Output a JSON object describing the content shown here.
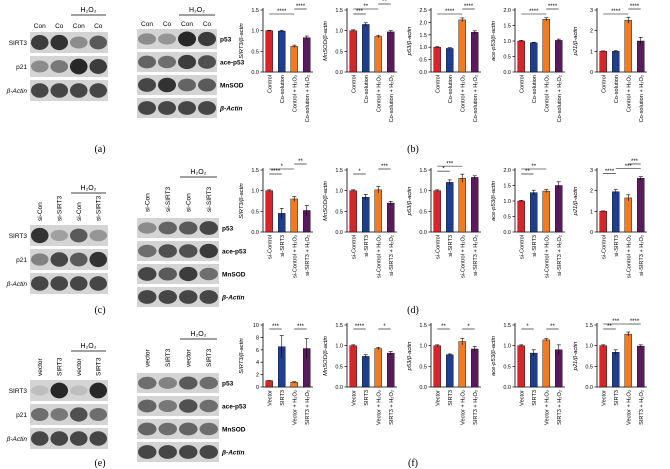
{
  "figure": {
    "panel_labels": [
      "(a)",
      "(b)",
      "(c)",
      "(d)",
      "(e)",
      "(f)"
    ],
    "h2o2_label": "H₂O₂",
    "beta_actin": "β-Actin"
  },
  "blots": [
    {
      "id": "a-left",
      "lanes": [
        "Con",
        "Co",
        "Con",
        "Co"
      ],
      "bands": [
        {
          "label": "SIRT3",
          "pattern": [
            0.75,
            0.8,
            0.35,
            0.6
          ]
        },
        {
          "label": "p21",
          "pattern": [
            0.35,
            0.45,
            0.85,
            0.75
          ]
        },
        {
          "label": "β-Actin",
          "pattern": [
            0.7,
            0.7,
            0.7,
            0.7
          ]
        }
      ]
    },
    {
      "id": "a-right",
      "lanes": [
        "Con",
        "Co",
        "Con",
        "Co"
      ],
      "bands": [
        {
          "label": "p53",
          "pattern": [
            0.35,
            0.3,
            0.85,
            0.75
          ]
        },
        {
          "label": "ace-p53",
          "pattern": [
            0.55,
            0.5,
            0.75,
            0.65
          ]
        },
        {
          "label": "MnSOD",
          "pattern": [
            0.7,
            0.8,
            0.55,
            0.6
          ]
        },
        {
          "label": "β-Actin",
          "pattern": [
            0.7,
            0.7,
            0.7,
            0.7
          ]
        }
      ]
    },
    {
      "id": "c-left",
      "lanes": [
        "si-Con",
        "si-SIRT3",
        "si-Con",
        "si-SIRT3"
      ],
      "bands": [
        {
          "label": "SIRT3",
          "pattern": [
            0.8,
            0.25,
            0.6,
            0.3
          ]
        },
        {
          "label": "p21",
          "pattern": [
            0.4,
            0.7,
            0.6,
            0.8
          ]
        },
        {
          "label": "β-Actin",
          "pattern": [
            0.7,
            0.7,
            0.7,
            0.7
          ]
        }
      ]
    },
    {
      "id": "c-right",
      "lanes": [
        "si-Con",
        "si-SIRT3",
        "si-Con",
        "si-SIRT3"
      ],
      "bands": [
        {
          "label": "p53",
          "pattern": [
            0.35,
            0.55,
            0.6,
            0.7
          ]
        },
        {
          "label": "ace-p53",
          "pattern": [
            0.5,
            0.65,
            0.65,
            0.75
          ]
        },
        {
          "label": "MnSOD",
          "pattern": [
            0.7,
            0.6,
            0.75,
            0.5
          ]
        },
        {
          "label": "β-Actin",
          "pattern": [
            0.7,
            0.7,
            0.7,
            0.7
          ]
        }
      ]
    },
    {
      "id": "e-left",
      "lanes": [
        "vector",
        "SIRT3",
        "vector",
        "SIRT3"
      ],
      "bands": [
        {
          "label": "SIRT3",
          "pattern": [
            0.1,
            0.85,
            0.1,
            0.85
          ]
        },
        {
          "label": "p21",
          "pattern": [
            0.5,
            0.45,
            0.65,
            0.5
          ]
        },
        {
          "label": "β-Actin",
          "pattern": [
            0.7,
            0.7,
            0.7,
            0.7
          ]
        }
      ]
    },
    {
      "id": "e-right",
      "lanes": [
        "vector",
        "SIRT3",
        "vector",
        "SIRT3"
      ],
      "bands": [
        {
          "label": "p53",
          "pattern": [
            0.5,
            0.4,
            0.6,
            0.5
          ]
        },
        {
          "label": "ace-p53",
          "pattern": [
            0.55,
            0.45,
            0.65,
            0.5
          ]
        },
        {
          "label": "MnSOD",
          "pattern": [
            0.55,
            0.5,
            0.55,
            0.5
          ]
        },
        {
          "label": "β-Actin",
          "pattern": [
            0.7,
            0.7,
            0.7,
            0.7
          ]
        }
      ]
    }
  ],
  "colors": {
    "series": [
      "#d62728",
      "#1f3e8a",
      "#f47a20",
      "#5a1a5e"
    ]
  },
  "chart_data": [
    {
      "type": "bar",
      "row": "b",
      "ylabel": "SIRT3/β-actin",
      "ylim": [
        0,
        1.5
      ],
      "yticks": [
        0.0,
        0.5,
        1.0,
        1.5
      ],
      "categories": [
        "Control",
        "Co-solution",
        "Control + H₂O₂",
        "Co-solution + H₂O₂"
      ],
      "values": [
        1.0,
        0.99,
        0.62,
        0.83
      ],
      "errors": [
        0.01,
        0.02,
        0.03,
        0.04
      ],
      "sig": [
        {
          "from": 0,
          "to": 2,
          "level": 0,
          "label": "****"
        },
        {
          "from": 2,
          "to": 3,
          "level": 1,
          "label": "****"
        }
      ]
    },
    {
      "type": "bar",
      "row": "b",
      "ylabel": "MnSOD/β-actin",
      "ylim": [
        0,
        1.5
      ],
      "yticks": [
        0.0,
        0.5,
        1.0,
        1.5
      ],
      "categories": [
        "Control",
        "Co-solution",
        "Control + H₂O₂",
        "Co-solution + H₂O₂"
      ],
      "values": [
        1.0,
        1.15,
        0.86,
        0.97
      ],
      "errors": [
        0.02,
        0.04,
        0.03,
        0.03
      ],
      "sig": [
        {
          "from": 0,
          "to": 1,
          "level": 0,
          "label": "***"
        },
        {
          "from": 0,
          "to": 2,
          "level": 1,
          "label": "**"
        },
        {
          "from": 2,
          "to": 3,
          "level": 2,
          "label": "**"
        }
      ]
    },
    {
      "type": "bar",
      "row": "b",
      "ylabel": "p53/β-actin",
      "ylim": [
        0,
        2.5
      ],
      "yticks": [
        0.0,
        0.5,
        1.0,
        1.5,
        2.0,
        2.5
      ],
      "categories": [
        "Control",
        "Co-solution",
        "Control + H₂O₂",
        "Co-solution + H₂O₂"
      ],
      "values": [
        1.0,
        0.95,
        2.1,
        1.6
      ],
      "errors": [
        0.02,
        0.03,
        0.08,
        0.06
      ],
      "sig": [
        {
          "from": 0,
          "to": 2,
          "level": 0,
          "label": "****"
        },
        {
          "from": 2,
          "to": 3,
          "level": 1,
          "label": "****"
        }
      ]
    },
    {
      "type": "bar",
      "row": "b",
      "ylabel": "ace-p53/β-actin",
      "ylim": [
        0,
        2.0
      ],
      "yticks": [
        0.0,
        0.5,
        1.0,
        1.5,
        2.0
      ],
      "categories": [
        "Control",
        "Co-solution",
        "Control + H₂O₂",
        "Co-solution + H₂O₂"
      ],
      "values": [
        1.0,
        0.94,
        1.7,
        1.02
      ],
      "errors": [
        0.02,
        0.02,
        0.05,
        0.04
      ],
      "sig": [
        {
          "from": 0,
          "to": 2,
          "level": 0,
          "label": "****"
        },
        {
          "from": 2,
          "to": 3,
          "level": 1,
          "label": "****"
        }
      ]
    },
    {
      "type": "bar",
      "row": "b",
      "ylabel": "p21/β-actin",
      "ylim": [
        0,
        3
      ],
      "yticks": [
        0,
        1,
        2,
        3
      ],
      "categories": [
        "Control",
        "Co-solution",
        "Control + H₂O₂",
        "Co-solution + H₂O₂"
      ],
      "values": [
        1.0,
        1.0,
        2.5,
        1.5
      ],
      "errors": [
        0.02,
        0.03,
        0.15,
        0.18
      ],
      "sig": [
        {
          "from": 0,
          "to": 2,
          "level": 0,
          "label": "****"
        },
        {
          "from": 2,
          "to": 3,
          "level": 1,
          "label": "****"
        }
      ]
    },
    {
      "type": "bar",
      "row": "d",
      "ylabel": "SIRT3/β-actin",
      "ylim": [
        0,
        1.5
      ],
      "yticks": [
        0.0,
        0.5,
        1.0,
        1.5
      ],
      "categories": [
        "si-Control",
        "si-SIRT3",
        "si-Control + H₂O₂",
        "si-SIRT3 + H₂O₂"
      ],
      "values": [
        1.0,
        0.45,
        0.8,
        0.52
      ],
      "errors": [
        0.02,
        0.12,
        0.06,
        0.12
      ],
      "sig": [
        {
          "from": 0,
          "to": 1,
          "level": 0,
          "label": "****"
        },
        {
          "from": 0,
          "to": 2,
          "level": 1,
          "label": "*"
        },
        {
          "from": 2,
          "to": 3,
          "level": 2,
          "label": "**"
        }
      ]
    },
    {
      "type": "bar",
      "row": "d",
      "ylabel": "MnSOD/β-actin",
      "ylim": [
        0,
        1.5
      ],
      "yticks": [
        0.0,
        0.5,
        1.0,
        1.5
      ],
      "categories": [
        "si-Control",
        "si-SIRT3",
        "si-Control + H₂O₂",
        "si-SIRT3 + H₂O₂"
      ],
      "values": [
        1.0,
        0.84,
        1.02,
        0.7
      ],
      "errors": [
        0.02,
        0.07,
        0.08,
        0.04
      ],
      "sig": [
        {
          "from": 0,
          "to": 1,
          "level": 0,
          "label": "*"
        },
        {
          "from": 2,
          "to": 3,
          "level": 1,
          "label": "***"
        }
      ]
    },
    {
      "type": "bar",
      "row": "d",
      "ylabel": "p53/β-actin",
      "ylim": [
        0,
        1.5
      ],
      "yticks": [
        0.0,
        0.5,
        1.0,
        1.5
      ],
      "categories": [
        "si-Control",
        "si-SIRT3",
        "si-Control + H₂O₂",
        "si-SIRT3 + H₂O₂"
      ],
      "values": [
        1.0,
        1.2,
        1.3,
        1.32
      ],
      "errors": [
        0.02,
        0.06,
        0.1,
        0.04
      ],
      "sig": [
        {
          "from": 0,
          "to": 1,
          "level": 0,
          "label": "*"
        },
        {
          "from": 0,
          "to": 2,
          "level": 1,
          "label": "***"
        }
      ]
    },
    {
      "type": "bar",
      "row": "d",
      "ylabel": "ace-p53/β-actin",
      "ylim": [
        0,
        2.0
      ],
      "yticks": [
        0.0,
        0.5,
        1.0,
        1.5,
        2.0
      ],
      "categories": [
        "si-Control",
        "si-SIRT3",
        "si-Control + H₂O₂",
        "si-SIRT3 + H₂O₂"
      ],
      "values": [
        1.0,
        1.27,
        1.32,
        1.5
      ],
      "errors": [
        0.02,
        0.08,
        0.05,
        0.12
      ],
      "sig": [
        {
          "from": 0,
          "to": 1,
          "level": 0,
          "label": "**"
        },
        {
          "from": 0,
          "to": 2,
          "level": 1,
          "label": "**"
        }
      ]
    },
    {
      "type": "bar",
      "row": "d",
      "ylabel": "p21/β-actin",
      "ylim": [
        0,
        3
      ],
      "yticks": [
        0,
        1,
        2,
        3
      ],
      "categories": [
        "si-Control",
        "si-SIRT3",
        "si-Control + H₂O₂",
        "si-SIRT3 + H₂O₂"
      ],
      "values": [
        1.0,
        1.95,
        1.65,
        2.6
      ],
      "errors": [
        0.02,
        0.1,
        0.15,
        0.08
      ],
      "sig": [
        {
          "from": 0,
          "to": 1,
          "level": 0,
          "label": "****"
        },
        {
          "from": 1,
          "to": 3,
          "level": 1,
          "label": "***"
        },
        {
          "from": 2,
          "to": 3,
          "level": 2,
          "label": "***"
        }
      ]
    },
    {
      "type": "bar",
      "row": "f",
      "ylabel": "SIRT3/β-actin",
      "ylim": [
        0,
        10
      ],
      "yticks": [
        0,
        2,
        4,
        6,
        8,
        10
      ],
      "categories": [
        "Vector",
        "SIRT3",
        "Vector + H₂O₂",
        "SIRT3 + H₂O₂"
      ],
      "values": [
        1.0,
        6.5,
        0.75,
        6.2
      ],
      "errors": [
        0.05,
        1.8,
        0.1,
        1.6
      ],
      "sig": [
        {
          "from": 0,
          "to": 1,
          "level": 0,
          "label": "***"
        },
        {
          "from": 2,
          "to": 3,
          "level": 0,
          "label": "***"
        }
      ]
    },
    {
      "type": "bar",
      "row": "f",
      "ylabel": "MnSOD/β-actin",
      "ylim": [
        0,
        1.5
      ],
      "yticks": [
        0.0,
        0.5,
        1.0,
        1.5
      ],
      "categories": [
        "Vector",
        "SIRT3",
        "Vector + H₂O₂",
        "SIRT3 + H₂O₂"
      ],
      "values": [
        1.0,
        0.74,
        0.93,
        0.82
      ],
      "errors": [
        0.02,
        0.04,
        0.03,
        0.04
      ],
      "sig": [
        {
          "from": 0,
          "to": 1,
          "level": 0,
          "label": "****"
        },
        {
          "from": 2,
          "to": 3,
          "level": 0,
          "label": "*"
        }
      ]
    },
    {
      "type": "bar",
      "row": "f",
      "ylabel": "p53/β-actin",
      "ylim": [
        0,
        1.5
      ],
      "yticks": [
        0.0,
        0.5,
        1.0,
        1.5
      ],
      "categories": [
        "Vector",
        "SIRT3",
        "Vector + H₂O₂",
        "SIRT3 + H₂O₂"
      ],
      "values": [
        1.0,
        0.78,
        1.1,
        0.92
      ],
      "errors": [
        0.02,
        0.02,
        0.08,
        0.06
      ],
      "sig": [
        {
          "from": 0,
          "to": 1,
          "level": 0,
          "label": "**"
        },
        {
          "from": 2,
          "to": 3,
          "level": 0,
          "label": "*"
        }
      ]
    },
    {
      "type": "bar",
      "row": "f",
      "ylabel": "ace-p53/β-actin",
      "ylim": [
        0,
        1.5
      ],
      "yticks": [
        0.0,
        0.5,
        1.0,
        1.5
      ],
      "categories": [
        "Vector",
        "SIRT3",
        "Vector + H₂O₂",
        "SIRT3 + H₂O₂"
      ],
      "values": [
        1.0,
        0.82,
        1.14,
        0.9
      ],
      "errors": [
        0.02,
        0.08,
        0.03,
        0.12
      ],
      "sig": [
        {
          "from": 0,
          "to": 1,
          "level": 0,
          "label": "*"
        },
        {
          "from": 2,
          "to": 3,
          "level": 0,
          "label": "**"
        }
      ]
    },
    {
      "type": "bar",
      "row": "f",
      "ylabel": "p21/β-actin",
      "ylim": [
        0,
        1.5
      ],
      "yticks": [
        0.0,
        0.5,
        1.0,
        1.5
      ],
      "categories": [
        "Vector",
        "SIRT3",
        "Vector + H₂O₂",
        "SIRT3 + H₂O₂"
      ],
      "values": [
        1.0,
        0.84,
        1.28,
        0.99
      ],
      "errors": [
        0.02,
        0.06,
        0.05,
        0.03
      ],
      "sig": [
        {
          "from": 0,
          "to": 1,
          "level": 0,
          "label": "**"
        },
        {
          "from": 0,
          "to": 2,
          "level": 1,
          "label": "***"
        },
        {
          "from": 2,
          "to": 3,
          "level": 1,
          "label": "****"
        }
      ]
    }
  ]
}
